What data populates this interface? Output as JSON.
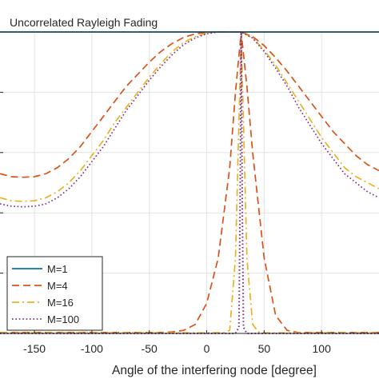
{
  "chart_data": {
    "type": "line",
    "annotation": "Uncorrelated Rayleigh Fading",
    "xlabel": "Angle of the interfering node [degree]",
    "ylabel": "",
    "x_ticks": [
      -150,
      -100,
      -50,
      0,
      50,
      100
    ],
    "x_tick_labels": [
      "-150",
      "-100",
      "-50",
      "0",
      "50",
      "100"
    ],
    "xlim": [
      -180,
      150
    ],
    "ylim": [
      0,
      1
    ],
    "y_ticks": [
      0,
      0.2,
      0.4,
      0.6,
      0.8,
      1.0
    ],
    "grid": true,
    "legend_position": "bottom-left",
    "curve_peak_x": 30,
    "series": [
      {
        "name": "M=1",
        "color": "#0072BD",
        "style": "solid",
        "x": [
          -180,
          -150,
          -100,
          -50,
          0,
          30,
          50,
          100,
          150
        ],
        "y": [
          1,
          1,
          1,
          1,
          1,
          1,
          1,
          1,
          1
        ]
      },
      {
        "name": "M=4",
        "color": "#D95319",
        "style": "dash",
        "x": [
          -180,
          -165,
          -150,
          -140,
          -125,
          -110,
          -100,
          -90,
          -80,
          -70,
          -60,
          -50,
          -40,
          -30,
          -20,
          -10,
          0,
          10,
          20,
          25,
          30,
          35,
          40,
          50,
          60,
          70,
          80,
          90,
          100,
          110,
          120,
          135,
          150
        ],
        "y": [
          0.003,
          0.003,
          0.003,
          0.003,
          0.003,
          0.003,
          0.003,
          0.003,
          0.003,
          0.003,
          0.003,
          0.003,
          0.003,
          0.005,
          0.01,
          0.03,
          0.1,
          0.25,
          0.55,
          0.8,
          1.0,
          0.82,
          0.6,
          0.25,
          0.06,
          0.01,
          0.003,
          0.003,
          0.003,
          0.003,
          0.003,
          0.003,
          0.003
        ]
      },
      {
        "name": "M=16",
        "color": "#EDB120",
        "style": "dashdot",
        "x": [
          -180,
          -100,
          -50,
          0,
          15,
          20,
          25,
          28,
          30,
          32,
          35,
          40,
          45,
          50,
          100,
          150
        ],
        "y": [
          0.002,
          0.002,
          0.002,
          0.002,
          0.003,
          0.01,
          0.25,
          0.7,
          1.0,
          0.7,
          0.25,
          0.03,
          0.005,
          0.002,
          0.002,
          0.002
        ]
      },
      {
        "name": "M=100",
        "color": "#7E2F8E",
        "style": "dot",
        "x": [
          -180,
          -100,
          0,
          25,
          28,
          29,
          30,
          31,
          32,
          35,
          100,
          150
        ],
        "y": [
          0.0,
          0.0,
          0.0,
          0.0,
          0.02,
          0.4,
          1.0,
          0.4,
          0.02,
          0.0,
          0.0,
          0.0
        ]
      }
    ],
    "envelope_series": [
      {
        "color": "#D95319",
        "style": "dash",
        "x": [
          -180,
          -170,
          -160,
          -150,
          -140,
          -130,
          -120,
          -110,
          -100,
          -90,
          -80,
          -70,
          -60,
          -50,
          -40,
          -30,
          -20,
          -10,
          0,
          10,
          20,
          30,
          40,
          50,
          60,
          70,
          80,
          90,
          100,
          110,
          120,
          130,
          140,
          150
        ],
        "y": [
          0.53,
          0.52,
          0.518,
          0.52,
          0.53,
          0.55,
          0.58,
          0.62,
          0.67,
          0.72,
          0.77,
          0.82,
          0.86,
          0.9,
          0.935,
          0.962,
          0.982,
          0.994,
          0.999,
          1.0,
          1.0,
          1.0,
          0.985,
          0.955,
          0.915,
          0.87,
          0.82,
          0.77,
          0.72,
          0.67,
          0.63,
          0.59,
          0.56,
          0.54
        ]
      },
      {
        "color": "#EDB120",
        "style": "dashdot",
        "x": [
          -180,
          -170,
          -160,
          -150,
          -140,
          -130,
          -120,
          -110,
          -100,
          -90,
          -80,
          -70,
          -60,
          -50,
          -40,
          -30,
          -20,
          -10,
          0,
          10,
          20,
          30,
          40,
          50,
          60,
          70,
          80,
          90,
          100,
          110,
          120,
          130,
          140,
          150
        ],
        "y": [
          0.45,
          0.44,
          0.438,
          0.44,
          0.45,
          0.47,
          0.5,
          0.54,
          0.59,
          0.64,
          0.7,
          0.75,
          0.8,
          0.85,
          0.895,
          0.935,
          0.965,
          0.985,
          0.996,
          1.0,
          1.0,
          1.0,
          0.98,
          0.94,
          0.89,
          0.83,
          0.77,
          0.71,
          0.65,
          0.6,
          0.55,
          0.52,
          0.5,
          0.48
        ]
      },
      {
        "color": "#7E2F8E",
        "style": "dot",
        "x": [
          -180,
          -170,
          -160,
          -150,
          -140,
          -130,
          -120,
          -110,
          -100,
          -90,
          -80,
          -70,
          -60,
          -50,
          -40,
          -30,
          -20,
          -10,
          0,
          10,
          20,
          30,
          40,
          50,
          60,
          70,
          80,
          90,
          100,
          110,
          120,
          130,
          140,
          150
        ],
        "y": [
          0.43,
          0.422,
          0.42,
          0.422,
          0.43,
          0.45,
          0.48,
          0.52,
          0.57,
          0.62,
          0.68,
          0.74,
          0.79,
          0.84,
          0.885,
          0.925,
          0.958,
          0.98,
          0.994,
          1.0,
          1.0,
          1.0,
          0.98,
          0.935,
          0.88,
          0.82,
          0.75,
          0.69,
          0.63,
          0.58,
          0.53,
          0.5,
          0.47,
          0.45
        ]
      }
    ]
  }
}
